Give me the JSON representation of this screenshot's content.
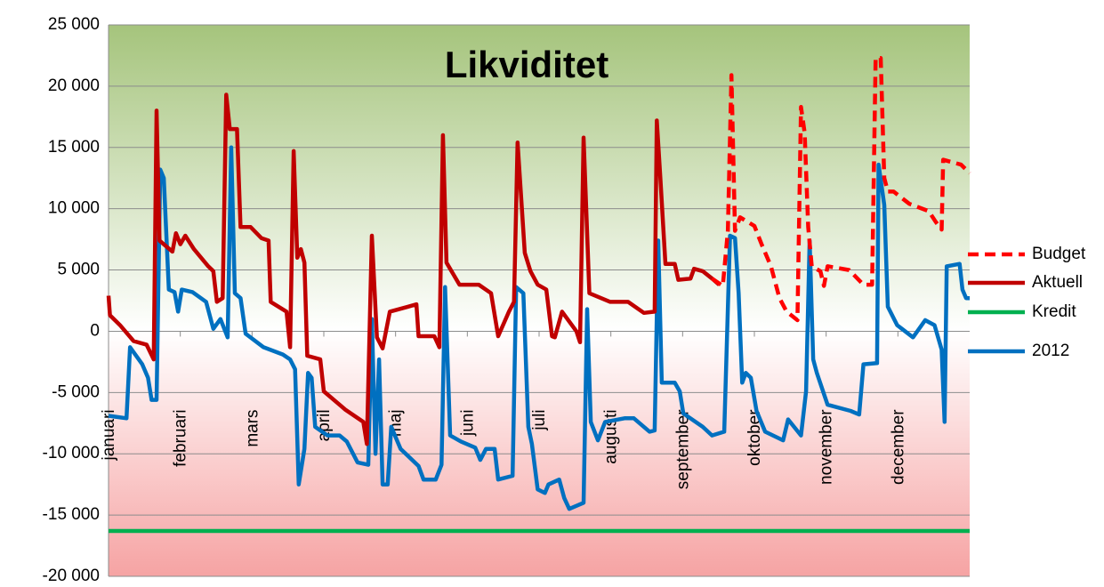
{
  "chart_data": {
    "type": "line",
    "title": "Likviditet",
    "xlim": [
      0,
      12
    ],
    "xticks": [
      {
        "value": 0,
        "label": "januari"
      },
      {
        "value": 1,
        "label": "februari"
      },
      {
        "value": 2,
        "label": "mars"
      },
      {
        "value": 3,
        "label": "april"
      },
      {
        "value": 4,
        "label": "maj"
      },
      {
        "value": 5,
        "label": "juni"
      },
      {
        "value": 6,
        "label": "juli"
      },
      {
        "value": 7,
        "label": "augusti"
      },
      {
        "value": 8,
        "label": "september"
      },
      {
        "value": 9,
        "label": "oktober"
      },
      {
        "value": 10,
        "label": "november"
      },
      {
        "value": 11,
        "label": "december"
      }
    ],
    "ylim": [
      -20000,
      25000
    ],
    "yticks": [
      {
        "value": -20000,
        "label": "-20 000"
      },
      {
        "value": -15000,
        "label": "-15 000"
      },
      {
        "value": -10000,
        "label": "-10 000"
      },
      {
        "value": -5000,
        "label": "-5 000"
      },
      0,
      {
        "value": 5000,
        "label": "5 000"
      },
      {
        "value": 10000,
        "label": "10 000"
      },
      {
        "value": 15000,
        "label": "15 000"
      },
      {
        "value": 20000,
        "label": "20 000"
      },
      {
        "value": 25000,
        "label": "25 000"
      }
    ],
    "grid": true,
    "legend": "right",
    "series": [
      {
        "name": "Budget",
        "color": "#ff0000",
        "dashed": true,
        "x": [
          8.41,
          8.56,
          8.63,
          8.68,
          8.73,
          8.8,
          9.0,
          9.1,
          9.23,
          9.35,
          9.45,
          9.6,
          9.65,
          9.7,
          9.75,
          9.8,
          9.92,
          9.97,
          10.02,
          10.32,
          10.52,
          10.64,
          10.69,
          10.76,
          10.81,
          10.86,
          10.94,
          11.16,
          11.43,
          11.53,
          11.61,
          11.63,
          11.88,
          12.0
        ],
        "values": [
          4300,
          3700,
          8200,
          20900,
          8200,
          9300,
          8600,
          7100,
          5300,
          2700,
          1600,
          900,
          18300,
          16200,
          8500,
          5300,
          4900,
          3700,
          5300,
          5000,
          3800,
          3800,
          22300,
          22300,
          12500,
          11400,
          11400,
          10400,
          9800,
          8900,
          8300,
          14000,
          13600,
          12900
        ]
      },
      {
        "name": "Aktuell",
        "color": "#c00000",
        "dashed": false,
        "x": [
          0,
          0.02,
          0.16,
          0.35,
          0.53,
          0.63,
          0.67,
          0.71,
          0.89,
          0.94,
          1.0,
          1.07,
          1.19,
          1.39,
          1.46,
          1.51,
          1.59,
          1.64,
          1.69,
          1.79,
          1.84,
          1.98,
          2.13,
          2.23,
          2.26,
          2.48,
          2.53,
          2.58,
          2.63,
          2.68,
          2.73,
          2.77,
          2.95,
          3.0,
          3.3,
          3.55,
          3.6,
          3.67,
          3.74,
          3.82,
          3.92,
          4.17,
          4.29,
          4.32,
          4.54,
          4.61,
          4.66,
          4.71,
          4.89,
          5.16,
          5.33,
          5.43,
          5.58,
          5.65,
          5.7,
          5.8,
          5.88,
          5.98,
          6.1,
          6.18,
          6.22,
          6.32,
          6.52,
          6.57,
          6.62,
          6.7,
          6.99,
          7.24,
          7.46,
          7.61,
          7.64,
          7.69,
          7.76,
          7.89,
          7.94,
          8.11,
          8.16,
          8.28,
          8.41,
          8.51
        ],
        "values": [
          2900,
          1300,
          500,
          -800,
          -1100,
          -2300,
          18000,
          7400,
          6500,
          8000,
          7100,
          7800,
          6700,
          5300,
          4900,
          2400,
          2700,
          19300,
          16500,
          16500,
          8500,
          8500,
          7600,
          7400,
          2400,
          1600,
          -1300,
          14700,
          6000,
          6700,
          5600,
          -2000,
          -2300,
          -4900,
          -6400,
          -7400,
          -9200,
          7800,
          -500,
          -1400,
          1600,
          2000,
          2200,
          -400,
          -400,
          -1300,
          16000,
          5600,
          3800,
          3800,
          3100,
          -400,
          1600,
          2400,
          15400,
          6400,
          4900,
          3800,
          3400,
          -400,
          -500,
          1600,
          0,
          -900,
          15800,
          3100,
          2400,
          2400,
          1500,
          1600,
          17200,
          12500,
          5500,
          5500,
          4200,
          4300,
          5100,
          4900,
          4300,
          3800
        ]
      },
      {
        "name": "Kredit",
        "color": "#00b050",
        "dashed": false,
        "x": [
          0,
          12
        ],
        "values": [
          -16300,
          -16300
        ]
      },
      {
        "name": "2012",
        "color": "#0070c0",
        "dashed": false,
        "x": [
          0,
          0.25,
          0.3,
          0.47,
          0.55,
          0.6,
          0.67,
          0.72,
          0.77,
          0.84,
          0.92,
          0.97,
          1.02,
          1.17,
          1.36,
          1.46,
          1.56,
          1.66,
          1.71,
          1.76,
          1.84,
          1.91,
          2.16,
          2.43,
          2.53,
          2.6,
          2.65,
          2.73,
          2.78,
          2.83,
          2.88,
          3.05,
          3.22,
          3.32,
          3.47,
          3.62,
          3.67,
          3.72,
          3.77,
          3.82,
          3.89,
          3.94,
          4.07,
          4.32,
          4.39,
          4.56,
          4.64,
          4.69,
          4.76,
          4.91,
          5.11,
          5.18,
          5.26,
          5.38,
          5.43,
          5.63,
          5.68,
          5.78,
          5.85,
          5.9,
          5.98,
          6.08,
          6.13,
          6.28,
          6.35,
          6.42,
          6.62,
          6.67,
          6.72,
          6.82,
          6.92,
          7.19,
          7.32,
          7.54,
          7.61,
          7.66,
          7.71,
          7.89,
          7.96,
          8.01,
          8.28,
          8.41,
          8.58,
          8.66,
          8.73,
          8.78,
          8.83,
          8.88,
          8.95,
          9.03,
          9.15,
          9.4,
          9.47,
          9.65,
          9.72,
          9.77,
          9.82,
          9.87,
          10.02,
          10.34,
          10.46,
          10.52,
          10.71,
          10.73,
          10.81,
          10.86,
          10.99,
          11.21,
          11.38,
          11.51,
          11.61,
          11.65,
          11.68,
          11.86,
          11.9,
          11.95,
          12.0
        ],
        "values": [
          -6900,
          -7100,
          -1300,
          -2700,
          -3800,
          -5600,
          -5600,
          13200,
          12500,
          3400,
          3200,
          1600,
          3400,
          3200,
          2400,
          200,
          1000,
          -500,
          15000,
          3100,
          2700,
          -200,
          -1300,
          -1900,
          -2300,
          -3100,
          -12500,
          -9600,
          -3400,
          -3800,
          -7800,
          -8500,
          -8500,
          -9000,
          -10700,
          -10900,
          1000,
          -10000,
          -2300,
          -12500,
          -12500,
          -7800,
          -9600,
          -11000,
          -12100,
          -12100,
          -10900,
          3600,
          -8500,
          -9000,
          -9500,
          -10500,
          -9600,
          -9600,
          -12100,
          -11800,
          3600,
          3100,
          -7800,
          -9200,
          -12900,
          -13200,
          -12500,
          -12100,
          -13600,
          -14500,
          -14000,
          1800,
          -7400,
          -8900,
          -7400,
          -7100,
          -7100,
          -8200,
          -8100,
          7400,
          -4200,
          -4200,
          -4900,
          -6700,
          -7800,
          -8500,
          -8200,
          7800,
          7600,
          3100,
          -4200,
          -3400,
          -3800,
          -6500,
          -8200,
          -8900,
          -7200,
          -8500,
          -4900,
          7400,
          -2300,
          -3400,
          -6000,
          -6500,
          -6800,
          -2700,
          -2600,
          13600,
          10300,
          2000,
          500,
          -500,
          900,
          500,
          -1500,
          -7400,
          5300,
          5500,
          3400,
          2700,
          2700
        ]
      }
    ]
  }
}
